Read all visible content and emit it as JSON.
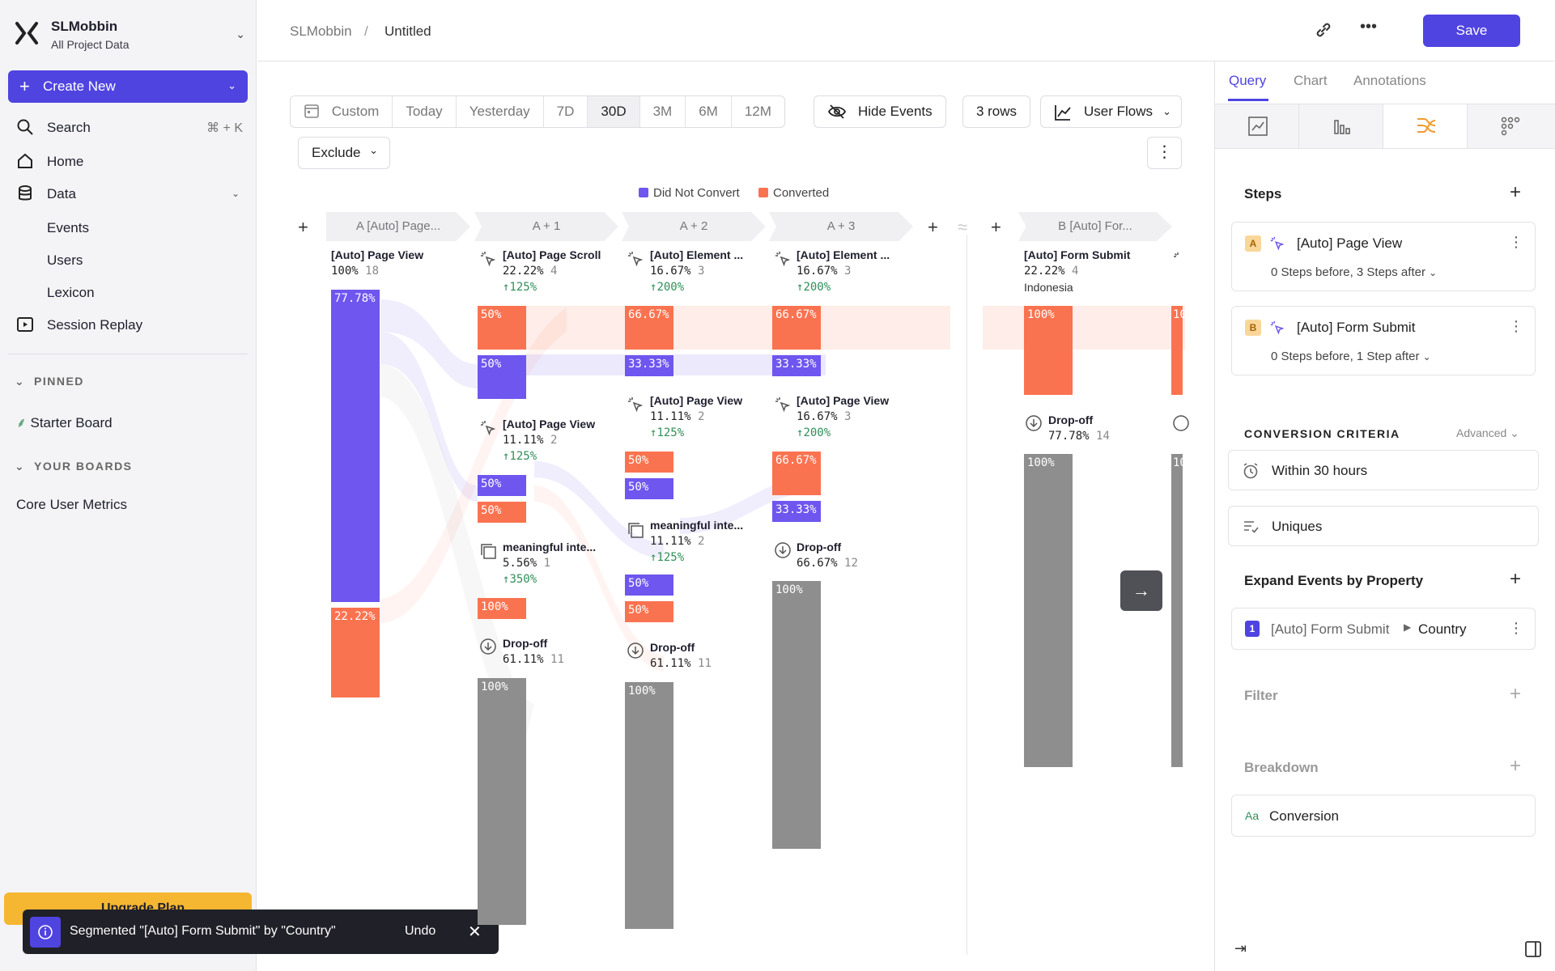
{
  "sidebar": {
    "workspace_name": "SLMobbin",
    "workspace_sub": "All Project Data",
    "create_new": "Create New",
    "search": "Search",
    "search_shortcut": "⌘ + K",
    "home": "Home",
    "data": "Data",
    "events": "Events",
    "users": "Users",
    "lexicon": "Lexicon",
    "session_replay": "Session Replay",
    "pinned_header": "PINNED",
    "starter_board": "Starter Board",
    "your_boards_header": "YOUR BOARDS",
    "core_metrics": "Core User Metrics",
    "upgrade": "Upgrade Plan"
  },
  "toast": {
    "message": "Segmented \"[Auto] Form Submit\" by \"Country\"",
    "undo": "Undo"
  },
  "header": {
    "crumb_root": "SLMobbin",
    "crumb_sep": "/",
    "crumb_page": "Untitled",
    "save": "Save"
  },
  "controls": {
    "ranges": [
      "Custom",
      "Today",
      "Yesterday",
      "7D",
      "30D",
      "3M",
      "6M",
      "12M"
    ],
    "hide_events": "Hide Events",
    "rows": "3 rows",
    "user_flows": "User Flows",
    "exclude": "Exclude"
  },
  "legend": {
    "did_not_convert": "Did Not Convert",
    "converted": "Converted"
  },
  "colors": {
    "purple": "#6e56ef",
    "orange": "#fa7350",
    "gray": "#8e8e8e",
    "accent": "#4f44e0"
  },
  "columns": {
    "a": "A  [Auto] Page...",
    "a1": "A + 1",
    "a2": "A + 2",
    "a3": "A + 3",
    "b": "B  [Auto] For..."
  },
  "flows": {
    "col_a": {
      "ev1": {
        "title": "[Auto] Page View",
        "pct": "100%",
        "n": "18"
      },
      "bar1": "77.78%",
      "bar2": "22.22%"
    },
    "col_a1": {
      "ev1": {
        "title": "[Auto] Page Scroll",
        "pct": "22.22%",
        "n": "4",
        "growth": "125%"
      },
      "bar1": "50%",
      "bar2": "50%",
      "ev2": {
        "title": "[Auto] Page View",
        "pct": "11.11%",
        "n": "2",
        "growth": "125%"
      },
      "bar3": "50%",
      "bar4": "50%",
      "ev3": {
        "title": "meaningful inte...",
        "pct": "5.56%",
        "n": "1",
        "growth": "350%"
      },
      "bar5": "100%",
      "drop": {
        "title": "Drop-off",
        "pct": "61.11%",
        "n": "11"
      },
      "bar6": "100%"
    },
    "col_a2": {
      "ev1": {
        "title": "[Auto] Element ...",
        "pct": "16.67%",
        "n": "3",
        "growth": "200%"
      },
      "bar1": "66.67%",
      "bar2": "33.33%",
      "ev2": {
        "title": "[Auto] Page View",
        "pct": "11.11%",
        "n": "2",
        "growth": "125%"
      },
      "bar3": "50%",
      "bar4": "50%",
      "ev3": {
        "title": "meaningful inte...",
        "pct": "11.11%",
        "n": "2",
        "growth": "125%"
      },
      "bar5": "50%",
      "bar6": "50%",
      "drop": {
        "title": "Drop-off",
        "pct": "61.11%",
        "n": "11"
      },
      "bar7": "100%"
    },
    "col_a3": {
      "ev1": {
        "title": "[Auto] Element ...",
        "pct": "16.67%",
        "n": "3",
        "growth": "200%"
      },
      "bar1": "66.67%",
      "bar2": "33.33%",
      "ev2": {
        "title": "[Auto] Page View",
        "pct": "16.67%",
        "n": "3",
        "growth": "200%"
      },
      "bar3": "66.67%",
      "bar4": "33.33%",
      "drop": {
        "title": "Drop-off",
        "pct": "66.67%",
        "n": "12"
      },
      "bar5": "100%"
    },
    "col_b": {
      "ev1": {
        "title": "[Auto] Form Submit",
        "pct": "22.22%",
        "n": "4",
        "segment": "Indonesia"
      },
      "bar1": "100%",
      "drop": {
        "title": "Drop-off",
        "pct": "77.78%",
        "n": "14"
      },
      "bar2": "100%",
      "peek1": "10",
      "peek2": "10"
    }
  },
  "right_panel": {
    "tabs": [
      "Query",
      "Chart",
      "Annotations"
    ],
    "steps_title": "Steps",
    "step_a": {
      "badge": "A",
      "name": "[Auto] Page View",
      "sub": "0 Steps before, 3 Steps after"
    },
    "step_b": {
      "badge": "B",
      "name": "[Auto] Form Submit",
      "sub": "0 Steps before, 1 Step after"
    },
    "criteria_title": "CONVERSION CRITERIA",
    "advanced": "Advanced",
    "within": "Within 30 hours",
    "uniques": "Uniques",
    "expand_title": "Expand Events by Property",
    "expand_item": {
      "badge": "1",
      "event": "[Auto] Form Submit",
      "property": "Country"
    },
    "filter_title": "Filter",
    "breakdown_title": "Breakdown",
    "conversion_badge": "Aa",
    "conversion": "Conversion"
  }
}
